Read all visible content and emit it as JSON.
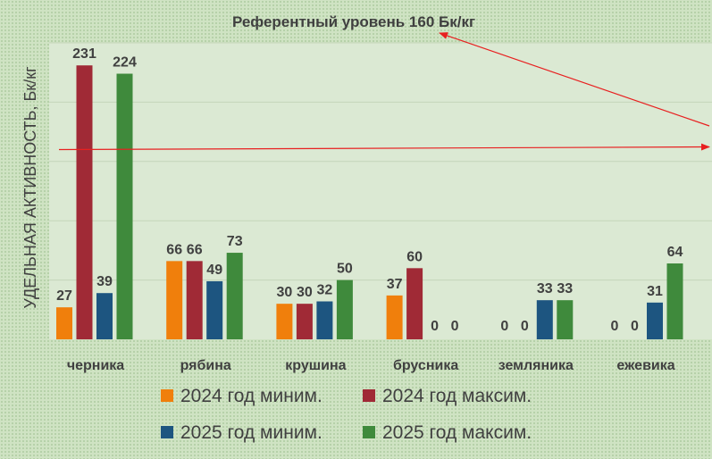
{
  "chart_data": {
    "type": "bar",
    "title": "",
    "annotation": "Референтный уровень 160 Бк/кг",
    "reference_value": 160,
    "ylabel": "УДЕЛЬНАЯ АКТИВНОСТЬ, Бк/кг",
    "xlabel": "",
    "ylim": [
      0,
      250
    ],
    "grid": true,
    "legend_position": "bottom",
    "categories": [
      "черника",
      "рябина",
      "крушина",
      "брусника",
      "земляника",
      "ежевика"
    ],
    "series": [
      {
        "name": "2024 год миним.",
        "color": "#f07f0c",
        "values": [
          27,
          66,
          30,
          37,
          0,
          0
        ]
      },
      {
        "name": "2024 год максим.",
        "color": "#a02a36",
        "values": [
          231,
          66,
          30,
          60,
          0,
          0
        ]
      },
      {
        "name": "2025 год миним.",
        "color": "#1d5580",
        "values": [
          39,
          49,
          32,
          0,
          33,
          31
        ]
      },
      {
        "name": "2025 год максим.",
        "color": "#3f8a3c",
        "values": [
          224,
          73,
          50,
          0,
          33,
          64
        ]
      }
    ],
    "reference_line_color": "#e82020"
  }
}
